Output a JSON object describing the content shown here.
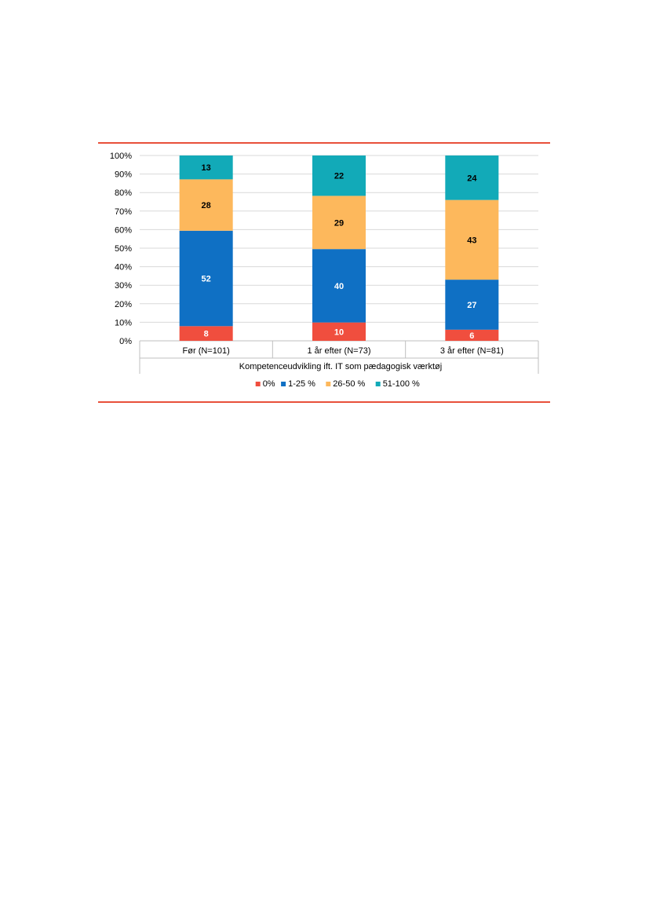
{
  "chart_data": {
    "type": "bar",
    "stacked": true,
    "percent_stacked": true,
    "categories": [
      "Før (N=101)",
      "1 år efter (N=73)",
      "3 år efter (N=81)"
    ],
    "xlabel": "Kompetenceudvikling ift. IT som pædagogisk værktøj",
    "ylabel": "",
    "ylim": [
      0,
      100
    ],
    "yticks": [
      "0%",
      "10%",
      "20%",
      "30%",
      "40%",
      "50%",
      "60%",
      "70%",
      "80%",
      "90%",
      "100%"
    ],
    "grid": true,
    "legend_position": "bottom",
    "series": [
      {
        "name": "0%",
        "color": "#f04e3e",
        "values": [
          8,
          10,
          6
        ],
        "label_color": "#ffffff"
      },
      {
        "name": "1-25 %",
        "color": "#0f70c4",
        "values": [
          52,
          40,
          27
        ],
        "label_color": "#ffffff"
      },
      {
        "name": "26-50 %",
        "color": "#fdb85c",
        "values": [
          28,
          29,
          43
        ],
        "label_color": "#000000"
      },
      {
        "name": "51-100 %",
        "color": "#12aab8",
        "values": [
          13,
          22,
          24
        ],
        "label_color": "#000000"
      }
    ]
  }
}
